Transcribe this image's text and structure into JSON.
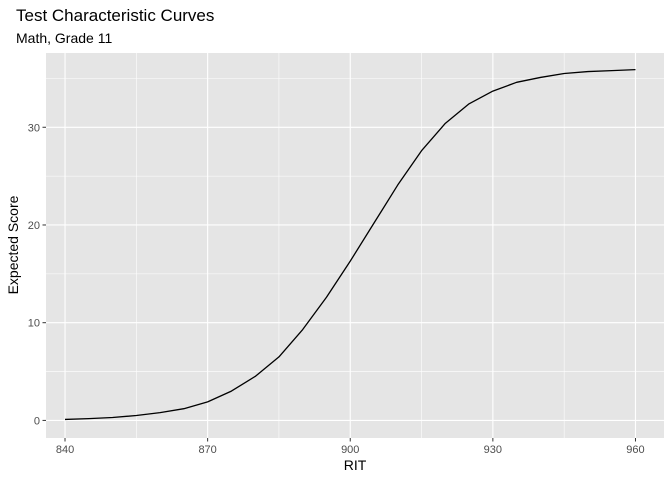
{
  "chart_data": {
    "type": "line",
    "title": "Test Characteristic Curves",
    "subtitle": "Math, Grade 11",
    "xlabel": "RIT",
    "ylabel": "Expected Score",
    "xlim": [
      836,
      966
    ],
    "ylim": [
      -1.8,
      37.6
    ],
    "x_ticks": [
      840,
      870,
      900,
      930,
      960
    ],
    "x_tick_labels": [
      "840",
      "870",
      "900",
      "930",
      "960"
    ],
    "y_ticks": [
      0,
      10,
      20,
      30
    ],
    "y_tick_labels": [
      "0",
      "10",
      "20",
      "30"
    ],
    "grid": true,
    "colors": {
      "panel": "#e5e5e5",
      "grid_major": "#ffffff",
      "line": "#000000",
      "tick": "#333333"
    },
    "series": [
      {
        "x": [
          840,
          845,
          850,
          855,
          860,
          865,
          870,
          875,
          880,
          885,
          890,
          895,
          900,
          905,
          910,
          915,
          920,
          925,
          930,
          935,
          940,
          945,
          950,
          955,
          960
        ],
        "y": [
          0.1,
          0.18,
          0.3,
          0.5,
          0.8,
          1.2,
          1.9,
          3.0,
          4.5,
          6.5,
          9.3,
          12.6,
          16.3,
          20.2,
          24.1,
          27.6,
          30.4,
          32.4,
          33.7,
          34.6,
          35.1,
          35.5,
          35.7,
          35.8,
          35.9
        ]
      }
    ]
  }
}
